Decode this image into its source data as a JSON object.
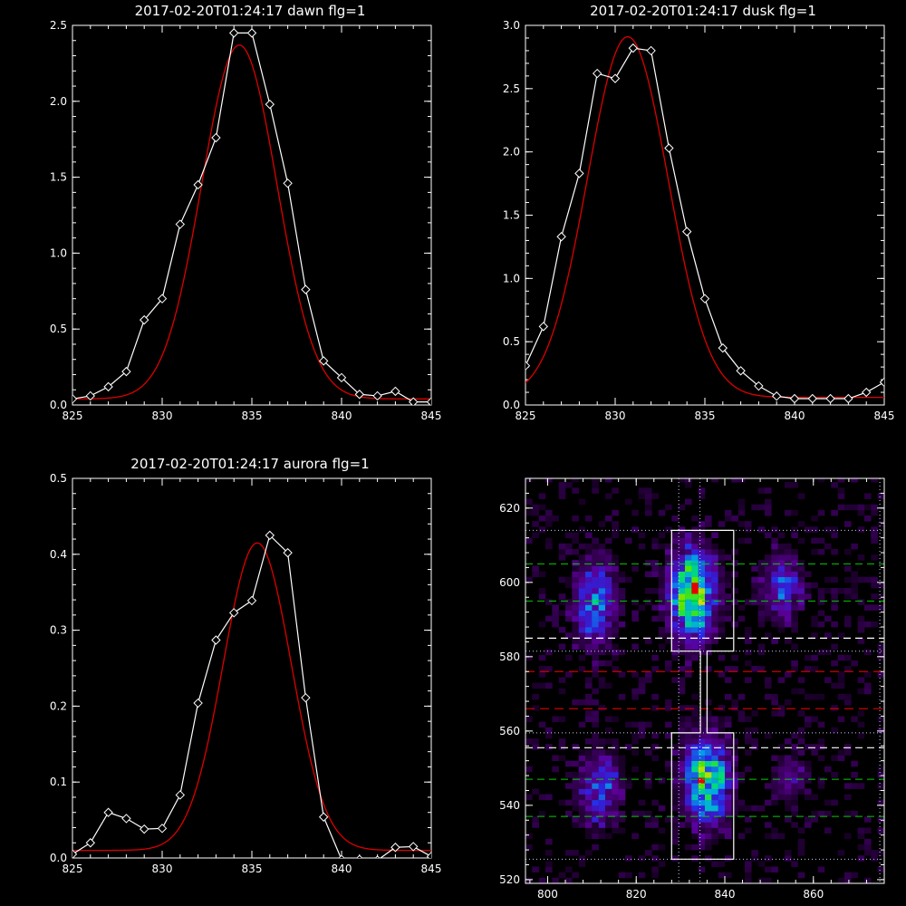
{
  "colors": {
    "background": "#000000",
    "axes": "#ffffff",
    "data_line": "#ffffff",
    "fit_line": "#dd0000",
    "box": "#ffffff",
    "dash_white": "#ffffff",
    "dash_red": "#cc0000",
    "dash_green": "#00cc00",
    "dotted": "#ccccff"
  },
  "chart_data": [
    {
      "id": "dawn",
      "type": "line",
      "title": "2017-02-20T01:24:17 dawn flg=1",
      "xlim": [
        825,
        845
      ],
      "ylim": [
        0,
        2.5
      ],
      "xticks": [
        "825",
        "830",
        "835",
        "840",
        "845"
      ],
      "yticks": [
        "0.0",
        "0.5",
        "1.0",
        "1.5",
        "2.0",
        "2.5"
      ],
      "series": [
        {
          "role": "data",
          "marker": "diamond",
          "x": [
            825,
            826,
            827,
            828,
            829,
            830,
            831,
            832,
            833,
            834,
            835,
            836,
            837,
            838,
            839,
            840,
            841,
            842,
            843,
            844,
            845
          ],
          "y": [
            0.04,
            0.06,
            0.12,
            0.22,
            0.56,
            0.7,
            1.19,
            1.45,
            1.76,
            2.45,
            2.45,
            1.98,
            1.46,
            0.76,
            0.29,
            0.18,
            0.07,
            0.06,
            0.09,
            0.02,
            0.02
          ]
        },
        {
          "role": "fit",
          "gaussian": {
            "amplitude": 2.33,
            "center": 834.3,
            "sigma": 2.1,
            "offset": 0.04
          }
        }
      ]
    },
    {
      "id": "dusk",
      "type": "line",
      "title": "2017-02-20T01:24:17 dusk flg=1",
      "xlim": [
        825,
        845
      ],
      "ylim": [
        0,
        3.0
      ],
      "xticks": [
        "825",
        "830",
        "835",
        "840",
        "845"
      ],
      "yticks": [
        "0.0",
        "0.5",
        "1.0",
        "1.5",
        "2.0",
        "2.5",
        "3.0"
      ],
      "series": [
        {
          "role": "data",
          "marker": "diamond",
          "x": [
            825,
            826,
            827,
            828,
            829,
            830,
            831,
            832,
            833,
            834,
            835,
            836,
            837,
            838,
            839,
            840,
            841,
            842,
            843,
            844,
            845
          ],
          "y": [
            0.31,
            0.62,
            1.33,
            1.83,
            2.62,
            2.58,
            2.82,
            2.8,
            2.03,
            1.37,
            0.84,
            0.45,
            0.27,
            0.15,
            0.07,
            0.05,
            0.05,
            0.05,
            0.05,
            0.1,
            0.18
          ]
        },
        {
          "role": "fit",
          "gaussian": {
            "amplitude": 2.85,
            "center": 830.7,
            "sigma": 2.25,
            "offset": 0.06
          }
        }
      ]
    },
    {
      "id": "aurora",
      "type": "line",
      "title": "2017-02-20T01:24:17 aurora flg=1",
      "xlim": [
        825,
        845
      ],
      "ylim": [
        0,
        0.5
      ],
      "xticks": [
        "825",
        "830",
        "835",
        "840",
        "845"
      ],
      "yticks": [
        "0.0",
        "0.1",
        "0.2",
        "0.3",
        "0.4",
        "0.5"
      ],
      "series": [
        {
          "role": "data",
          "marker": "diamond",
          "x": [
            825,
            826,
            827,
            828,
            829,
            830,
            831,
            832,
            833,
            834,
            835,
            836,
            837,
            838,
            839,
            840,
            841,
            842,
            843,
            844,
            845
          ],
          "y": [
            0.005,
            0.02,
            0.06,
            0.052,
            0.038,
            0.039,
            0.083,
            0.204,
            0.287,
            0.323,
            0.339,
            0.425,
            0.402,
            0.211,
            0.054,
            -0.002,
            -0.002,
            -0.003,
            0.014,
            0.015,
            0.002
          ]
        },
        {
          "role": "fit",
          "gaussian": {
            "amplitude": 0.405,
            "center": 835.3,
            "sigma": 1.9,
            "offset": 0.01
          }
        }
      ]
    },
    {
      "id": "image",
      "type": "heatmap",
      "xlim": [
        795,
        876
      ],
      "ylim": [
        519,
        628
      ],
      "xticks": [
        "800",
        "820",
        "840",
        "860"
      ],
      "yticks": [
        "520",
        "540",
        "560",
        "580",
        "600",
        "620"
      ],
      "blobs": [
        {
          "x": 810,
          "y": 594,
          "sx": 3.2,
          "sy": 8,
          "amp": 0.5
        },
        {
          "x": 832,
          "y": 596,
          "sx": 3.5,
          "sy": 8,
          "amp": 0.95
        },
        {
          "x": 852,
          "y": 598,
          "sx": 3.0,
          "sy": 6,
          "amp": 0.42
        },
        {
          "x": 811,
          "y": 544,
          "sx": 3.2,
          "sy": 7,
          "amp": 0.42
        },
        {
          "x": 835,
          "y": 546,
          "sx": 3.5,
          "sy": 8,
          "amp": 0.78
        },
        {
          "x": 854,
          "y": 546,
          "sx": 3.0,
          "sy": 5,
          "amp": 0.22
        }
      ],
      "lines": {
        "white_dashed_y": [
          585,
          555.5
        ],
        "red_dashed_y": [
          576,
          566
        ],
        "green_dashed_y": [
          605,
          595,
          547,
          537
        ],
        "dotted_y": [
          614,
          581.5,
          559.5,
          525.5
        ],
        "dotted_x": [
          829.6,
          834.4,
          875
        ]
      },
      "box": {
        "upper": {
          "x0": 828,
          "x1": 842,
          "y0": 581.5,
          "y1": 614
        },
        "neck": {
          "x0": 834.5,
          "x1": 836,
          "y0": 559.5,
          "y1": 581.5
        },
        "lower": {
          "x0": 828,
          "x1": 842,
          "y0": 525.5,
          "y1": 559.5
        }
      }
    }
  ]
}
